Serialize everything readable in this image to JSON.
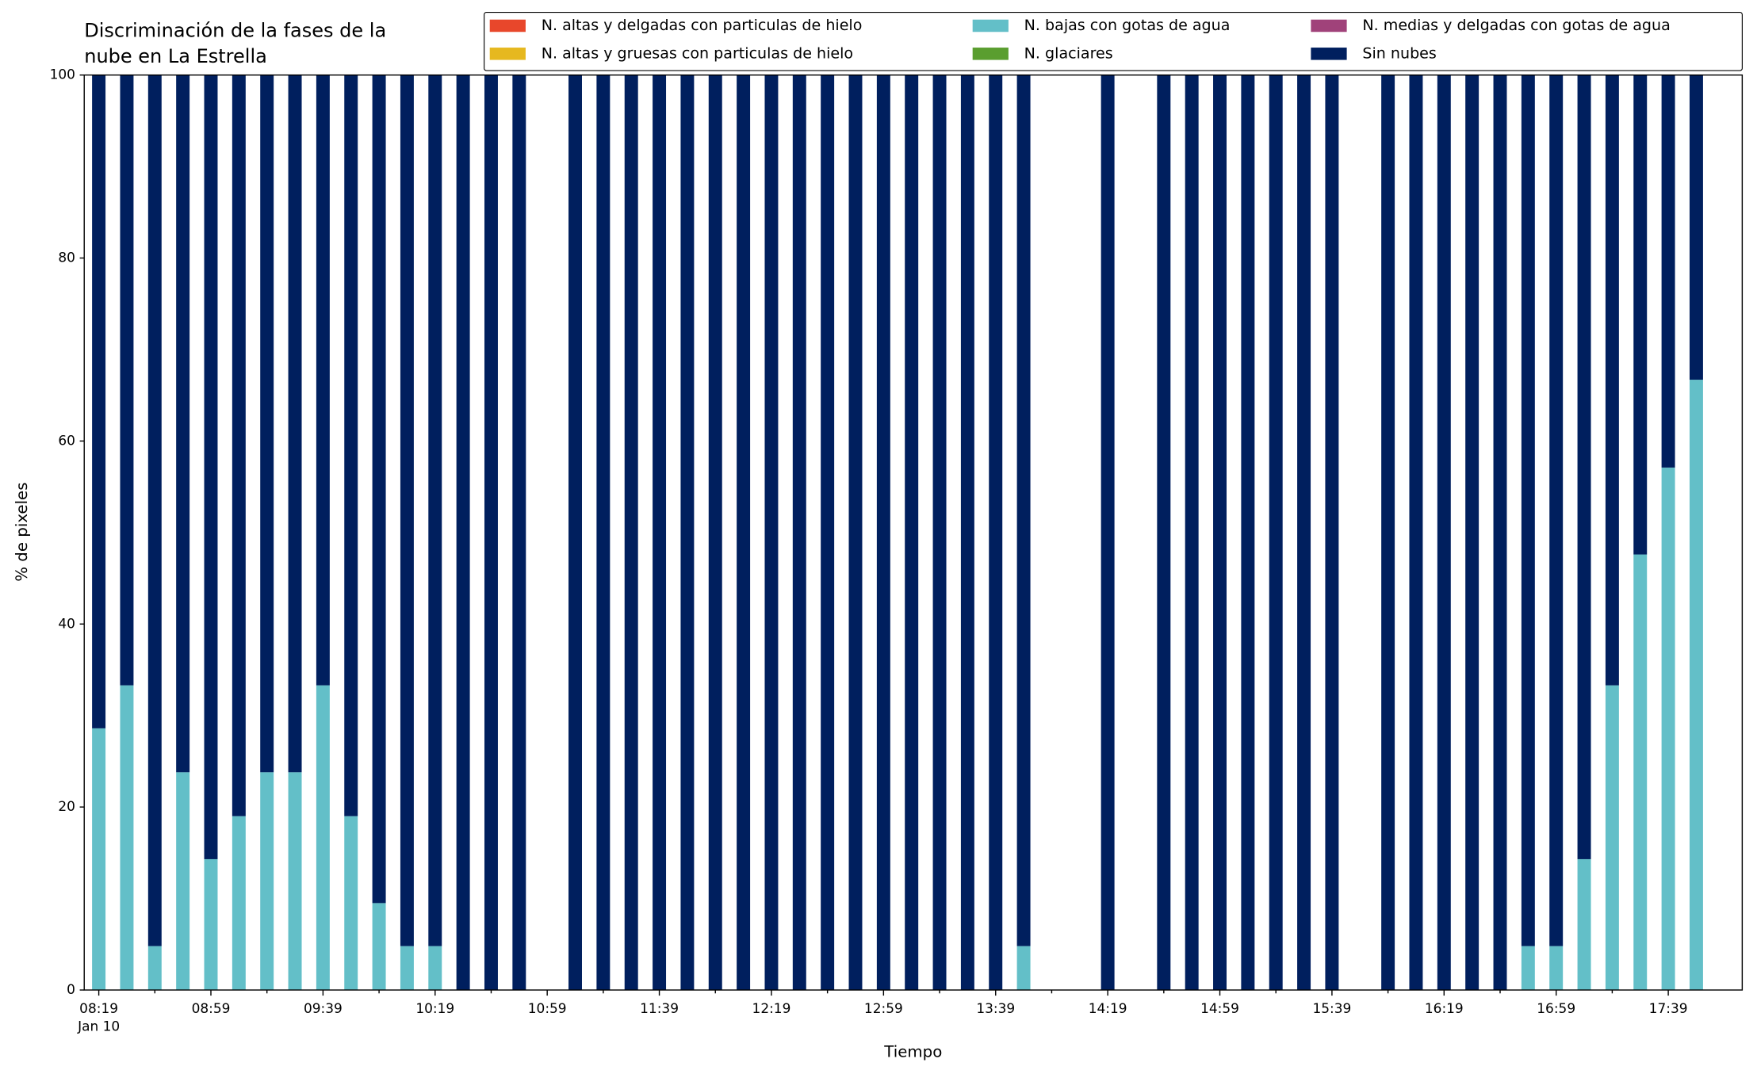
{
  "chart_data": {
    "type": "stacked_bar",
    "title": [
      "Discriminación de la fases de la",
      "nube en La Estrella"
    ],
    "x_label": "Tiempo",
    "y_label": "% de pixeles",
    "x_date_label": "Jan 10",
    "categories": [
      "08:19",
      null,
      null,
      null,
      "08:59",
      null,
      null,
      null,
      "09:39",
      null,
      null,
      null,
      "10:19",
      null,
      null,
      null,
      "10:59",
      null,
      null,
      null,
      "11:39",
      null,
      null,
      null,
      "12:19",
      null,
      null,
      null,
      "12:59",
      null,
      null,
      null,
      "13:39",
      null,
      null,
      null,
      "14:19",
      null,
      null,
      null,
      "14:59",
      null,
      null,
      null,
      "15:39",
      null,
      null,
      null,
      "16:19",
      null,
      null,
      null,
      "16:59",
      null,
      null,
      null,
      "17:39",
      null
    ],
    "ylim": [
      0,
      100
    ],
    "yticks": [
      0,
      20,
      40,
      60,
      80,
      100
    ],
    "legend": "upper right",
    "series": [
      {
        "name": "N. altas y delgadas con particulas de hielo",
        "color": "#e8472b",
        "values": [
          0,
          0,
          0,
          0,
          0,
          0,
          0,
          0,
          0,
          0,
          0,
          0,
          0,
          0,
          0,
          0,
          null,
          0,
          0,
          0,
          0,
          0,
          0,
          0,
          0,
          0,
          0,
          0,
          0,
          0,
          0,
          0,
          0,
          0,
          null,
          null,
          0,
          null,
          0,
          0,
          0,
          0,
          0,
          0,
          0,
          null,
          0,
          0,
          0,
          0,
          0,
          0,
          0,
          0,
          0,
          0,
          0,
          0
        ]
      },
      {
        "name": "N. altas y gruesas con particulas de hielo",
        "color": "#e6b81f",
        "values": [
          0,
          0,
          0,
          0,
          0,
          0,
          0,
          0,
          0,
          0,
          0,
          0,
          0,
          0,
          0,
          0,
          null,
          0,
          0,
          0,
          0,
          0,
          0,
          0,
          0,
          0,
          0,
          0,
          0,
          0,
          0,
          0,
          0,
          0,
          null,
          null,
          0,
          null,
          0,
          0,
          0,
          0,
          0,
          0,
          0,
          null,
          0,
          0,
          0,
          0,
          0,
          0,
          0,
          0,
          0,
          0,
          0,
          0
        ]
      },
      {
        "name": "N. bajas con gotas de agua",
        "color": "#63bfc8",
        "values": [
          28.6,
          33.3,
          4.8,
          23.8,
          14.3,
          19.0,
          23.8,
          23.8,
          33.3,
          19.0,
          9.5,
          4.8,
          4.8,
          0,
          0,
          0,
          null,
          0,
          0,
          0,
          0,
          0,
          0,
          0,
          0,
          0,
          0,
          0,
          0,
          0,
          0,
          0,
          0,
          4.8,
          null,
          null,
          0,
          null,
          0,
          0,
          0,
          0,
          0,
          0,
          0,
          null,
          0,
          0,
          0,
          0,
          0,
          4.8,
          4.8,
          14.3,
          33.3,
          47.6,
          57.1,
          66.7
        ]
      },
      {
        "name": "N. glaciares",
        "color": "#5a9e2f",
        "values": [
          0,
          0,
          0,
          0,
          0,
          0,
          0,
          0,
          0,
          0,
          0,
          0,
          0,
          0,
          0,
          0,
          null,
          0,
          0,
          0,
          0,
          0,
          0,
          0,
          0,
          0,
          0,
          0,
          0,
          0,
          0,
          0,
          0,
          0,
          null,
          null,
          0,
          null,
          0,
          0,
          0,
          0,
          0,
          0,
          0,
          null,
          0,
          0,
          0,
          0,
          0,
          0,
          0,
          0,
          0,
          0,
          0,
          0
        ]
      },
      {
        "name": "N. medias y delgadas con gotas de agua",
        "color": "#a0427a",
        "values": [
          0,
          0,
          0,
          0,
          0,
          0,
          0,
          0,
          0,
          0,
          0,
          0,
          0,
          0,
          0,
          0,
          null,
          0,
          0,
          0,
          0,
          0,
          0,
          0,
          0,
          0,
          0,
          0,
          0,
          0,
          0,
          0,
          0,
          0,
          null,
          null,
          0,
          null,
          0,
          0,
          0,
          0,
          0,
          0,
          0,
          null,
          0,
          0,
          0,
          0,
          0,
          0,
          0,
          0,
          0,
          0,
          0,
          0
        ]
      },
      {
        "name": "Sin nubes",
        "color": "#001f5e",
        "values": [
          71.4,
          66.7,
          95.2,
          76.2,
          85.7,
          81.0,
          76.2,
          76.2,
          66.7,
          81.0,
          90.5,
          95.2,
          95.2,
          100,
          100,
          100,
          null,
          100,
          100,
          100,
          100,
          100,
          100,
          100,
          100,
          100,
          100,
          100,
          100,
          100,
          100,
          100,
          100,
          95.2,
          null,
          null,
          100,
          null,
          100,
          100,
          100,
          100,
          100,
          100,
          100,
          null,
          100,
          100,
          100,
          100,
          100,
          95.2,
          95.2,
          85.7,
          66.7,
          52.4,
          42.9,
          33.3
        ]
      }
    ]
  }
}
